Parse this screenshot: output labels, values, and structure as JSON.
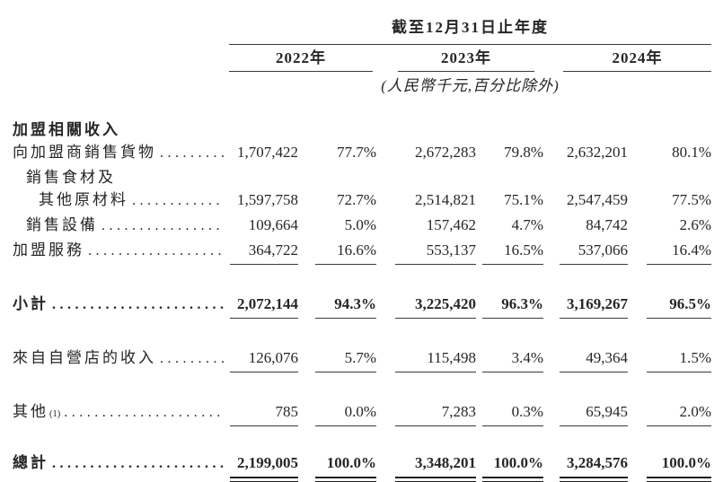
{
  "table": {
    "period_header": "截至12月31日止年度",
    "unit_note": "(人民幣千元,百分比除外)",
    "year_columns": [
      "2022年",
      "2023年",
      "2024年"
    ],
    "rows": [
      {
        "label": "加盟相關收入"
      },
      {
        "label": "向加盟商銷售貨物",
        "values": [
          "1,707,422",
          "77.7%",
          "2,672,283",
          "79.8%",
          "2,632,201",
          "80.1%"
        ]
      },
      {
        "label": "銷售食材及"
      },
      {
        "label": "其他原材料",
        "values": [
          "1,597,758",
          "72.7%",
          "2,514,821",
          "75.1%",
          "2,547,459",
          "77.5%"
        ]
      },
      {
        "label": "銷售設備",
        "values": [
          "109,664",
          "5.0%",
          "157,462",
          "4.7%",
          "84,742",
          "2.6%"
        ]
      },
      {
        "label": "加盟服務",
        "values": [
          "364,722",
          "16.6%",
          "553,137",
          "16.5%",
          "537,066",
          "16.4%"
        ]
      },
      {
        "label": "小計",
        "values": [
          "2,072,144",
          "94.3%",
          "3,225,420",
          "96.3%",
          "3,169,267",
          "96.5%"
        ]
      },
      {
        "label": "來自自營店的收入",
        "values": [
          "126,076",
          "5.7%",
          "115,498",
          "3.4%",
          "49,364",
          "1.5%"
        ]
      },
      {
        "label": "其他",
        "footnote": "(1)",
        "values": [
          "785",
          "0.0%",
          "7,283",
          "0.3%",
          "65,945",
          "2.0%"
        ]
      },
      {
        "label": "總計",
        "values": [
          "2,199,005",
          "100.0%",
          "3,348,201",
          "100.0%",
          "3,284,576",
          "100.0%"
        ]
      }
    ],
    "colors": {
      "text": "#262626",
      "rule": "#3a3a3a",
      "rule_heavy": "#1c1c1c",
      "background": "#ffffff"
    }
  }
}
